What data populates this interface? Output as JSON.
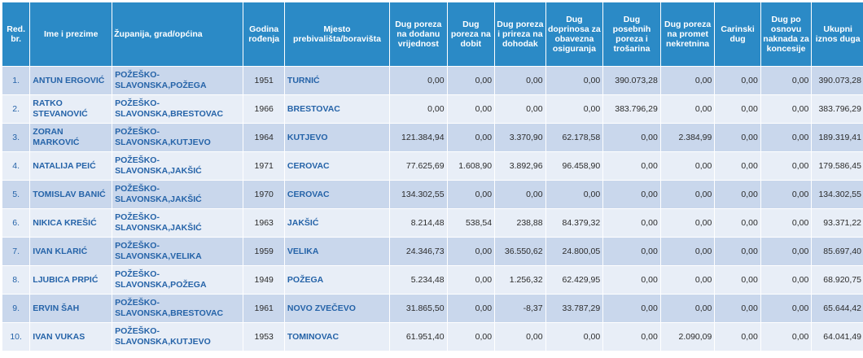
{
  "headers": [
    "Red. br.",
    "Ime i prezime",
    "Županija, grad/općina",
    "Godina rođenja",
    "Mjesto prebivališta/boravišta",
    "Dug poreza na dodanu vrijednost",
    "Dug poreza na dobit",
    "Dug poreza i prireza na dohodak",
    "Dug doprinosa za obavezna osiguranja",
    "Dug posebnih poreza i trošarina",
    "Dug poreza na promet nekretnina",
    "Carinski dug",
    "Dug po osnovu naknada za koncesije",
    "Ukupni iznos duga"
  ],
  "rows": [
    [
      "1.",
      "ANTUN ERGOVIĆ",
      "POŽEŠKO-SLAVONSKA,POŽEGA",
      "1951",
      "TURNIĆ",
      "0,00",
      "0,00",
      "0,00",
      "0,00",
      "390.073,28",
      "0,00",
      "0,00",
      "0,00",
      "390.073,28"
    ],
    [
      "2.",
      "RATKO STEVANOVIĆ",
      "POŽEŠKO-SLAVONSKA,BRESTOVAC",
      "1966",
      "BRESTOVAC",
      "0,00",
      "0,00",
      "0,00",
      "0,00",
      "383.796,29",
      "0,00",
      "0,00",
      "0,00",
      "383.796,29"
    ],
    [
      "3.",
      "ZORAN MARKOVIĆ",
      "POŽEŠKO-SLAVONSKA,KUTJEVO",
      "1964",
      "KUTJEVO",
      "121.384,94",
      "0,00",
      "3.370,90",
      "62.178,58",
      "0,00",
      "2.384,99",
      "0,00",
      "0,00",
      "189.319,41"
    ],
    [
      "4.",
      "NATALIJA PEIĆ",
      "POŽEŠKO-SLAVONSKA,JAKŠIĆ",
      "1971",
      "CEROVAC",
      "77.625,69",
      "1.608,90",
      "3.892,96",
      "96.458,90",
      "0,00",
      "0,00",
      "0,00",
      "0,00",
      "179.586,45"
    ],
    [
      "5.",
      "TOMISLAV BANIĆ",
      "POŽEŠKO-SLAVONSKA,JAKŠIĆ",
      "1970",
      "CEROVAC",
      "134.302,55",
      "0,00",
      "0,00",
      "0,00",
      "0,00",
      "0,00",
      "0,00",
      "0,00",
      "134.302,55"
    ],
    [
      "6.",
      "NIKICA KREŠIĆ",
      "POŽEŠKO-SLAVONSKA,JAKŠIĆ",
      "1963",
      "JAKŠIĆ",
      "8.214,48",
      "538,54",
      "238,88",
      "84.379,32",
      "0,00",
      "0,00",
      "0,00",
      "0,00",
      "93.371,22"
    ],
    [
      "7.",
      "IVAN KLARIĆ",
      "POŽEŠKO-SLAVONSKA,VELIKA",
      "1959",
      "VELIKA",
      "24.346,73",
      "0,00",
      "36.550,62",
      "24.800,05",
      "0,00",
      "0,00",
      "0,00",
      "0,00",
      "85.697,40"
    ],
    [
      "8.",
      "LJUBICA PRPIĆ",
      "POŽEŠKO-SLAVONSKA,POŽEGA",
      "1949",
      "POŽEGA",
      "5.234,48",
      "0,00",
      "1.256,32",
      "62.429,95",
      "0,00",
      "0,00",
      "0,00",
      "0,00",
      "68.920,75"
    ],
    [
      "9.",
      "ERVIN ŠAH",
      "POŽEŠKO-SLAVONSKA,BRESTOVAC",
      "1961",
      "NOVO ZVEČEVO",
      "31.865,50",
      "0,00",
      "-8,37",
      "33.787,29",
      "0,00",
      "0,00",
      "0,00",
      "0,00",
      "65.644,42"
    ],
    [
      "10.",
      "IVAN VUKAS",
      "POŽEŠKO-SLAVONSKA,KUTJEVO",
      "1953",
      "TOMINOVAC",
      "61.951,40",
      "0,00",
      "0,00",
      "0,00",
      "0,00",
      "2.090,09",
      "0,00",
      "0,00",
      "64.041,49"
    ]
  ],
  "colors": {
    "header": "#2b8ac6",
    "row_odd": "#c9d7ec",
    "row_even": "#e8eef7",
    "text_blue": "#2563a8"
  }
}
